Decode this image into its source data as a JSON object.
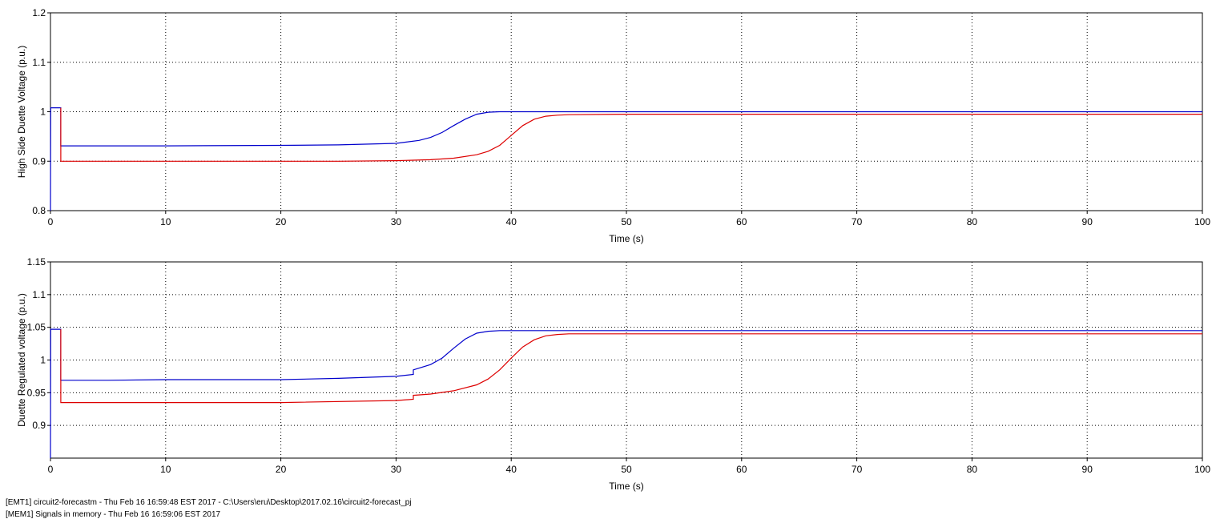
{
  "chart_data": [
    {
      "type": "line",
      "ylabel": "High Side Duette Voltage (p.u.)",
      "xlabel": "Time (s)",
      "xlim": [
        0,
        100
      ],
      "ylim": [
        0.8,
        1.2
      ],
      "xticks": [
        "0",
        "10",
        "20",
        "30",
        "40",
        "50",
        "60",
        "70",
        "80",
        "90",
        "100"
      ],
      "yticks": [
        "0.8",
        "0.9",
        "1",
        "1.1",
        "1.2"
      ],
      "grid": true,
      "series": [
        {
          "color": "#0000cc",
          "x": [
            0,
            0.02,
            0.9,
            0.9,
            5,
            10,
            20,
            25,
            30,
            32,
            33,
            34,
            35,
            36,
            37,
            38,
            39,
            40,
            60,
            100
          ],
          "y": [
            0.8,
            1.008,
            1.008,
            0.931,
            0.931,
            0.931,
            0.932,
            0.933,
            0.936,
            0.942,
            0.948,
            0.958,
            0.972,
            0.985,
            0.995,
            0.999,
            1.0,
            1.0,
            1.0,
            1.0
          ]
        },
        {
          "color": "#dd0000",
          "x": [
            0.9,
            0.9,
            5,
            10,
            20,
            25,
            30,
            33,
            35,
            37,
            38,
            39,
            40,
            41,
            42,
            43,
            44,
            45,
            50,
            100
          ],
          "y": [
            1.008,
            0.9,
            0.9,
            0.9,
            0.9,
            0.9,
            0.901,
            0.903,
            0.906,
            0.913,
            0.92,
            0.932,
            0.952,
            0.972,
            0.985,
            0.991,
            0.993,
            0.994,
            0.995,
            0.995
          ]
        }
      ]
    },
    {
      "type": "line",
      "ylabel": "Duette Regulated voltage (p.u.)",
      "xlabel": "Time (s)",
      "xlim": [
        0,
        100
      ],
      "ylim": [
        0.85,
        1.15
      ],
      "xticks": [
        "0",
        "10",
        "20",
        "30",
        "40",
        "50",
        "60",
        "70",
        "80",
        "90",
        "100"
      ],
      "yticks": [
        "0.9",
        "0.95",
        "1",
        "1.05",
        "1.1",
        "1.15"
      ],
      "grid": true,
      "series": [
        {
          "color": "#0000cc",
          "x": [
            0,
            0.02,
            0.9,
            0.9,
            5,
            10,
            20,
            25,
            30,
            31.5,
            31.5,
            33,
            34,
            35,
            36,
            37,
            38,
            39,
            40,
            60,
            100
          ],
          "y": [
            0.85,
            1.047,
            1.047,
            0.969,
            0.969,
            0.97,
            0.97,
            0.972,
            0.975,
            0.978,
            0.985,
            0.993,
            1.003,
            1.018,
            1.032,
            1.041,
            1.044,
            1.045,
            1.045,
            1.045,
            1.045
          ]
        },
        {
          "color": "#dd0000",
          "x": [
            0.9,
            0.9,
            5,
            10,
            20,
            30,
            31.5,
            31.5,
            33,
            35,
            37,
            38,
            39,
            40,
            41,
            42,
            43,
            44,
            45,
            50,
            100
          ],
          "y": [
            1.047,
            0.935,
            0.935,
            0.935,
            0.935,
            0.938,
            0.94,
            0.946,
            0.948,
            0.953,
            0.962,
            0.971,
            0.985,
            1.003,
            1.02,
            1.031,
            1.037,
            1.039,
            1.04,
            1.04,
            1.04
          ]
        }
      ]
    }
  ],
  "footer": {
    "line1": "[EMT1] circuit2-forecastm - Thu Feb 16 16:59:48 EST 2017 - C:\\Users\\eru\\Desktop\\2017.02.16\\circuit2-forecast_pj",
    "line2": "[MEM1] Signals in memory - Thu Feb 16 16:59:06 EST 2017"
  }
}
